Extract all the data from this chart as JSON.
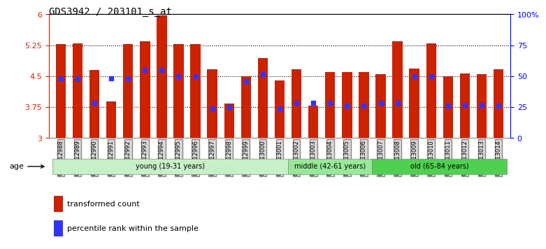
{
  "title": "GDS3942 / 203101_s_at",
  "samples": [
    "GSM812988",
    "GSM812989",
    "GSM812990",
    "GSM812991",
    "GSM812992",
    "GSM812993",
    "GSM812994",
    "GSM812995",
    "GSM812996",
    "GSM812997",
    "GSM812998",
    "GSM812999",
    "GSM813000",
    "GSM813001",
    "GSM813002",
    "GSM813003",
    "GSM813004",
    "GSM813005",
    "GSM813006",
    "GSM813007",
    "GSM813008",
    "GSM813009",
    "GSM813010",
    "GSM813011",
    "GSM813012",
    "GSM813013",
    "GSM813014"
  ],
  "bar_values": [
    5.27,
    5.3,
    4.65,
    3.88,
    5.27,
    5.35,
    5.97,
    5.27,
    5.27,
    4.67,
    3.84,
    4.5,
    4.93,
    4.4,
    4.67,
    3.78,
    4.6,
    4.6,
    4.6,
    4.55,
    5.35,
    4.68,
    5.3,
    4.5,
    4.57,
    4.55,
    4.67
  ],
  "percentile_values": [
    4.45,
    4.45,
    3.85,
    4.45,
    4.45,
    4.65,
    4.65,
    4.5,
    4.5,
    3.72,
    3.75,
    4.38,
    4.55,
    3.72,
    3.85,
    3.85,
    3.85,
    3.78,
    3.78,
    3.85,
    3.85,
    4.5,
    4.5,
    3.78,
    3.8,
    3.8,
    3.78
  ],
  "groups": [
    {
      "label": "young (19-31 years)",
      "start": 0,
      "end": 14,
      "color": "#c8f0c8"
    },
    {
      "label": "middle (42-61 years)",
      "start": 14,
      "end": 19,
      "color": "#98e898"
    },
    {
      "label": "old (65-84 years)",
      "start": 19,
      "end": 27,
      "color": "#50d050"
    }
  ],
  "ylim": [
    3.0,
    6.0
  ],
  "yticks": [
    3.0,
    3.75,
    4.5,
    5.25,
    6.0
  ],
  "ytick_labels": [
    "3",
    "3.75",
    "4.5",
    "5.25",
    "6"
  ],
  "y2ticks": [
    0,
    25,
    50,
    75,
    100
  ],
  "y2tick_labels": [
    "0",
    "25",
    "50",
    "75",
    "100%"
  ],
  "bar_color": "#cc2200",
  "dot_color": "#3333ff",
  "bg_color": "#f0f0f0",
  "grid_color": "#000000",
  "age_label": "age",
  "legend1": "transformed count",
  "legend2": "percentile rank within the sample"
}
